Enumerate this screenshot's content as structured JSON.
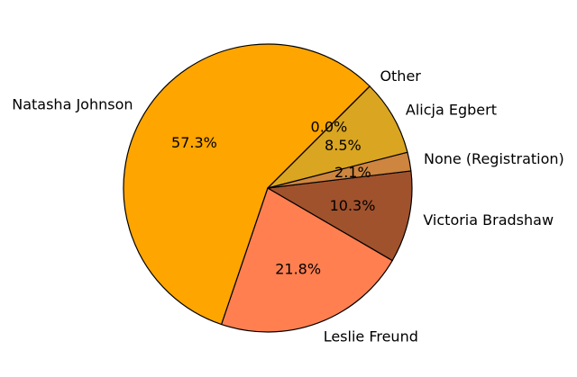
{
  "chart_data": {
    "type": "pie",
    "title": "",
    "start_angle_deg": 45,
    "direction": "counterclockwise",
    "slices": [
      {
        "label": "Natasha Johnson",
        "pct_label": "57.3%",
        "value": 57.3,
        "color": "#FFA500"
      },
      {
        "label": "Leslie Freund",
        "pct_label": "21.8%",
        "value": 21.8,
        "color": "#FF7F50"
      },
      {
        "label": "Victoria Bradshaw",
        "pct_label": "10.3%",
        "value": 10.3,
        "color": "#A0522D"
      },
      {
        "label": "None (Registration)",
        "pct_label": "2.1%",
        "value": 2.1,
        "color": "#CD853F"
      },
      {
        "label": "Alicja Egbert",
        "pct_label": "8.5%",
        "value": 8.5,
        "color": "#DAA520"
      },
      {
        "label": "Other",
        "pct_label": "0.0%",
        "value": 0.0,
        "color": "#B8860B"
      }
    ]
  }
}
